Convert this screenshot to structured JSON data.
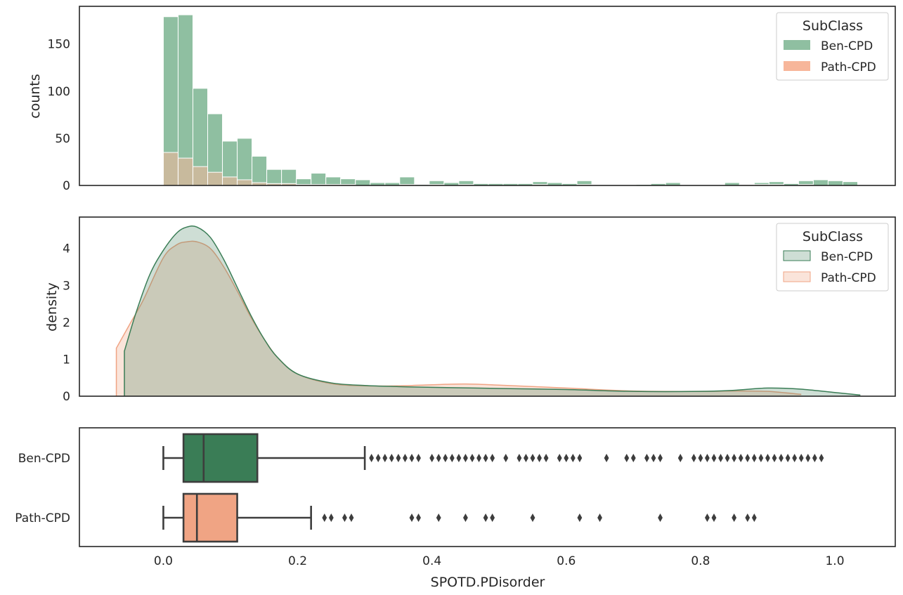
{
  "colors": {
    "ben": "#3a7d56",
    "path": "#f0a484",
    "ben_hist": "#8fbfa1",
    "path_hist": "#f7b69a",
    "axis": "#262626"
  },
  "chart_data": [
    {
      "type": "bar",
      "subtype": "histogram-overlay",
      "ylabel": "counts",
      "xlabel": "",
      "xlim": [
        -0.125,
        1.09
      ],
      "ylim": [
        0,
        190
      ],
      "yticks": [
        0,
        50,
        100,
        150
      ],
      "ytick_labels": [
        "0",
        "50",
        "100",
        "150"
      ],
      "bin_width": 0.022,
      "bin_start": 0.0,
      "legend": {
        "title": "SubClass",
        "position": "top-right"
      },
      "series": [
        {
          "name": "Ben-CPD",
          "values": [
            179,
            181,
            103,
            76,
            47,
            50,
            31,
            17,
            17,
            7,
            13,
            9,
            7,
            6,
            3,
            3,
            9,
            1,
            5,
            3,
            5,
            2,
            2,
            2,
            2,
            4,
            3,
            2,
            5,
            0,
            0,
            0,
            1,
            2,
            3,
            0,
            0,
            0,
            3,
            1,
            3,
            4,
            2,
            5,
            6,
            5,
            4
          ]
        },
        {
          "name": "Path-CPD",
          "values": [
            35,
            29,
            20,
            14,
            9,
            6,
            3,
            2,
            2,
            1,
            1,
            1,
            1,
            0,
            0,
            0,
            1,
            0,
            1,
            0,
            1,
            0,
            0,
            0,
            0,
            1,
            0,
            0,
            1,
            0,
            0,
            0,
            0,
            0,
            0,
            0,
            0,
            0,
            0,
            1,
            1,
            1,
            0,
            1,
            0,
            0,
            0
          ]
        }
      ]
    },
    {
      "type": "area",
      "subtype": "kde",
      "ylabel": "density",
      "xlabel": "",
      "xlim": [
        -0.125,
        1.09
      ],
      "ylim": [
        0,
        4.85
      ],
      "yticks": [
        0,
        1,
        2,
        3,
        4
      ],
      "ytick_labels": [
        "0",
        "1",
        "2",
        "3",
        "4"
      ],
      "legend": {
        "title": "SubClass",
        "position": "top-right"
      },
      "series": [
        {
          "name": "Ben-CPD",
          "x": [
            -0.058,
            -0.04,
            -0.02,
            0.0,
            0.02,
            0.035,
            0.05,
            0.07,
            0.09,
            0.11,
            0.13,
            0.15,
            0.17,
            0.2,
            0.25,
            0.3,
            0.35,
            0.4,
            0.5,
            0.6,
            0.7,
            0.8,
            0.85,
            0.9,
            0.95,
            1.0,
            1.038
          ],
          "y": [
            1.22,
            2.3,
            3.3,
            3.95,
            4.42,
            4.58,
            4.58,
            4.3,
            3.7,
            2.95,
            2.2,
            1.55,
            1.05,
            0.6,
            0.36,
            0.29,
            0.26,
            0.24,
            0.21,
            0.18,
            0.13,
            0.13,
            0.16,
            0.22,
            0.19,
            0.1,
            0.03
          ]
        },
        {
          "name": "Path-CPD",
          "x": [
            -0.07,
            -0.05,
            -0.03,
            0.0,
            0.02,
            0.035,
            0.05,
            0.07,
            0.09,
            0.11,
            0.13,
            0.15,
            0.17,
            0.2,
            0.25,
            0.3,
            0.35,
            0.4,
            0.45,
            0.5,
            0.6,
            0.7,
            0.8,
            0.85,
            0.9,
            0.95
          ],
          "y": [
            1.3,
            1.95,
            2.6,
            3.75,
            4.1,
            4.18,
            4.18,
            4.0,
            3.5,
            2.85,
            2.15,
            1.55,
            1.05,
            0.6,
            0.34,
            0.28,
            0.28,
            0.31,
            0.33,
            0.3,
            0.22,
            0.14,
            0.13,
            0.14,
            0.13,
            0.05
          ]
        }
      ]
    },
    {
      "type": "box",
      "xlabel": "SPOTD.PDisorder",
      "ylabel": "",
      "xlim": [
        -0.125,
        1.09
      ],
      "xticks": [
        0.0,
        0.2,
        0.4,
        0.6,
        0.8,
        1.0
      ],
      "xtick_labels": [
        "0.0",
        "0.2",
        "0.4",
        "0.6",
        "0.8",
        "1.0"
      ],
      "categories": [
        "Ben-CPD",
        "Path-CPD"
      ],
      "boxes": [
        {
          "name": "Ben-CPD",
          "whisker_low": 0.0,
          "q1": 0.03,
          "median": 0.06,
          "q3": 0.14,
          "whisker_high": 0.3,
          "outliers": [
            0.31,
            0.32,
            0.33,
            0.34,
            0.35,
            0.36,
            0.37,
            0.38,
            0.4,
            0.41,
            0.42,
            0.43,
            0.44,
            0.45,
            0.46,
            0.47,
            0.48,
            0.49,
            0.51,
            0.53,
            0.54,
            0.55,
            0.56,
            0.57,
            0.59,
            0.6,
            0.61,
            0.62,
            0.66,
            0.69,
            0.7,
            0.72,
            0.73,
            0.74,
            0.77,
            0.79,
            0.8,
            0.81,
            0.82,
            0.83,
            0.84,
            0.85,
            0.86,
            0.87,
            0.88,
            0.89,
            0.9,
            0.91,
            0.92,
            0.93,
            0.94,
            0.95,
            0.96,
            0.97,
            0.98
          ]
        },
        {
          "name": "Path-CPD",
          "whisker_low": 0.0,
          "q1": 0.03,
          "median": 0.05,
          "q3": 0.11,
          "whisker_high": 0.22,
          "outliers": [
            0.24,
            0.25,
            0.27,
            0.28,
            0.37,
            0.38,
            0.41,
            0.45,
            0.48,
            0.49,
            0.55,
            0.62,
            0.65,
            0.74,
            0.81,
            0.82,
            0.85,
            0.87,
            0.88
          ]
        }
      ]
    }
  ]
}
